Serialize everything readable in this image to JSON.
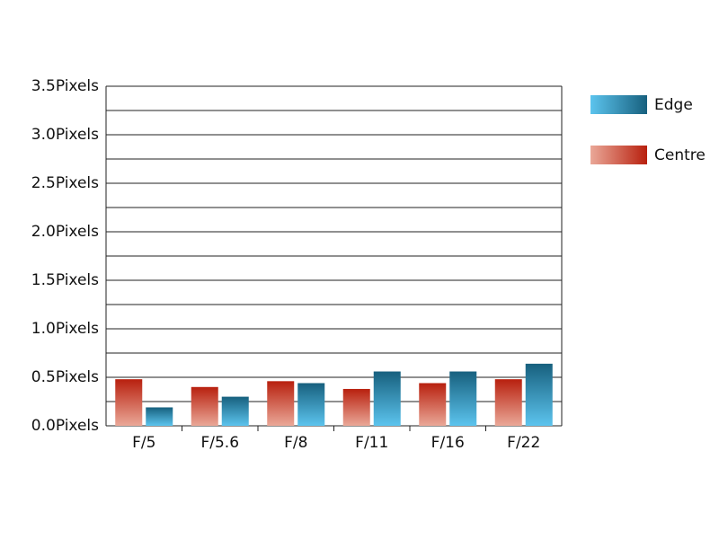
{
  "chart_data": {
    "type": "bar",
    "categories": [
      "F/5",
      "F/5.6",
      "F/8",
      "F/11",
      "F/16",
      "F/22"
    ],
    "series": [
      {
        "name": "Centre",
        "color": "#b8200e",
        "color_light": "#eaa898",
        "values": [
          0.48,
          0.4,
          0.46,
          0.38,
          0.44,
          0.48
        ]
      },
      {
        "name": "Edge",
        "color": "#17607e",
        "color_light": "#5cc4ee",
        "values": [
          0.19,
          0.3,
          0.44,
          0.56,
          0.56,
          0.64
        ]
      }
    ],
    "legend_order": [
      "Edge",
      "Centre"
    ],
    "legend": "right",
    "ylim": [
      0,
      3.5
    ],
    "yticks": [
      {
        "value": 0,
        "label": "0.0Pixels"
      },
      {
        "value": 0.5,
        "label": "0.5Pixels"
      },
      {
        "value": 1,
        "label": "1.0Pixels"
      },
      {
        "value": 1.5,
        "label": "1.5Pixels"
      },
      {
        "value": 2,
        "label": "2.0Pixels"
      },
      {
        "value": 2.5,
        "label": "2.5Pixels"
      },
      {
        "value": 3,
        "label": "3.0Pixels"
      },
      {
        "value": 3.5,
        "label": "3.5Pixels"
      }
    ],
    "minor_yticks": [
      0.25,
      0.75,
      1.25,
      1.75,
      2.25,
      2.75,
      3.25
    ],
    "grid": true
  }
}
